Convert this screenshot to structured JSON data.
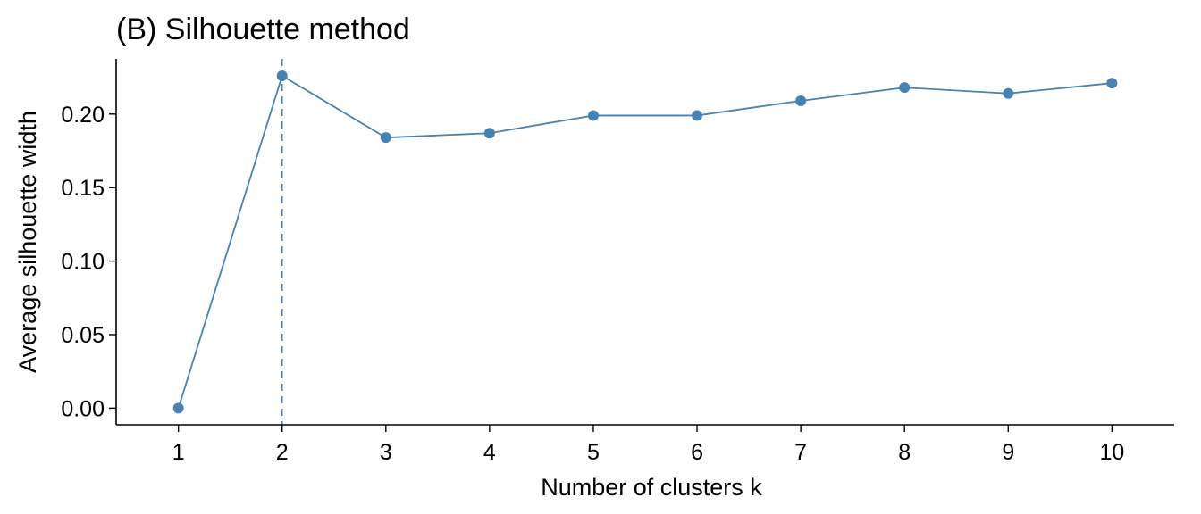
{
  "chart_data": {
    "type": "line",
    "title": "(B) Silhouette method",
    "xlabel": "Number of clusters k",
    "ylabel": "Average silhouette width",
    "x": [
      1,
      2,
      3,
      4,
      5,
      6,
      7,
      8,
      9,
      10
    ],
    "x_tick_labels": [
      "1",
      "2",
      "3",
      "4",
      "5",
      "6",
      "7",
      "8",
      "9",
      "10"
    ],
    "y_ticks": [
      0.0,
      0.05,
      0.1,
      0.15,
      0.2
    ],
    "y_tick_labels": [
      "0.00",
      "0.05",
      "0.10",
      "0.15",
      "0.20"
    ],
    "series": [
      {
        "values": [
          0.0,
          0.226,
          0.184,
          0.187,
          0.199,
          0.199,
          0.209,
          0.218,
          0.214,
          0.221
        ],
        "color": "#4682B4"
      }
    ],
    "optimal_k": 2,
    "xlim": [
      0.4,
      10.6
    ],
    "ylim": [
      -0.0113,
      0.2375
    ],
    "grid": false,
    "legend": "none"
  }
}
